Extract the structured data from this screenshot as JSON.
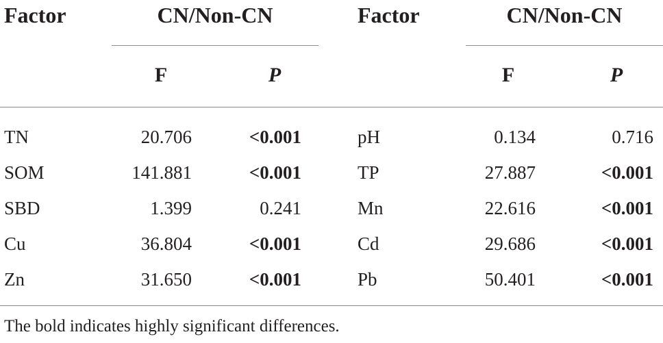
{
  "table": {
    "header": {
      "factor_label": "Factor",
      "group_label": "CN/Non-CN",
      "f_label": "F",
      "p_label": "P"
    },
    "rows": [
      {
        "factor": "TN",
        "f": "20.706",
        "p": "<0.001",
        "p_bold": true
      },
      {
        "factor": "SOM",
        "f": "141.881",
        "p": "<0.001",
        "p_bold": true
      },
      {
        "factor": "SBD",
        "f": "1.399",
        "p": "0.241",
        "p_bold": false
      },
      {
        "factor": "Cu",
        "f": "36.804",
        "p": "<0.001",
        "p_bold": true
      },
      {
        "factor": "Zn",
        "f": "31.650",
        "p": "<0.001",
        "p_bold": true
      },
      {
        "factor": "pH",
        "f": "0.134",
        "p": "0.716",
        "p_bold": false
      },
      {
        "factor": "TP",
        "f": "27.887",
        "p": "<0.001",
        "p_bold": true
      },
      {
        "factor": "Mn",
        "f": "22.616",
        "p": "<0.001",
        "p_bold": true
      },
      {
        "factor": "Cd",
        "f": "29.686",
        "p": "<0.001",
        "p_bold": true
      },
      {
        "factor": "Pb",
        "f": "50.401",
        "p": "<0.001",
        "p_bold": true
      }
    ],
    "footnote": "The bold indicates highly significant differences."
  },
  "chart_data": {
    "type": "table",
    "columns": [
      "Factor",
      "F",
      "P"
    ],
    "group": "CN/Non-CN",
    "rows": [
      [
        "TN",
        20.706,
        "<0.001"
      ],
      [
        "SOM",
        141.881,
        "<0.001"
      ],
      [
        "SBD",
        1.399,
        0.241
      ],
      [
        "Cu",
        36.804,
        "<0.001"
      ],
      [
        "Zn",
        31.65,
        "<0.001"
      ],
      [
        "pH",
        0.134,
        0.716
      ],
      [
        "TP",
        27.887,
        "<0.001"
      ],
      [
        "Mn",
        22.616,
        "<0.001"
      ],
      [
        "Cd",
        29.686,
        "<0.001"
      ],
      [
        "Pb",
        50.401,
        "<0.001"
      ]
    ]
  }
}
